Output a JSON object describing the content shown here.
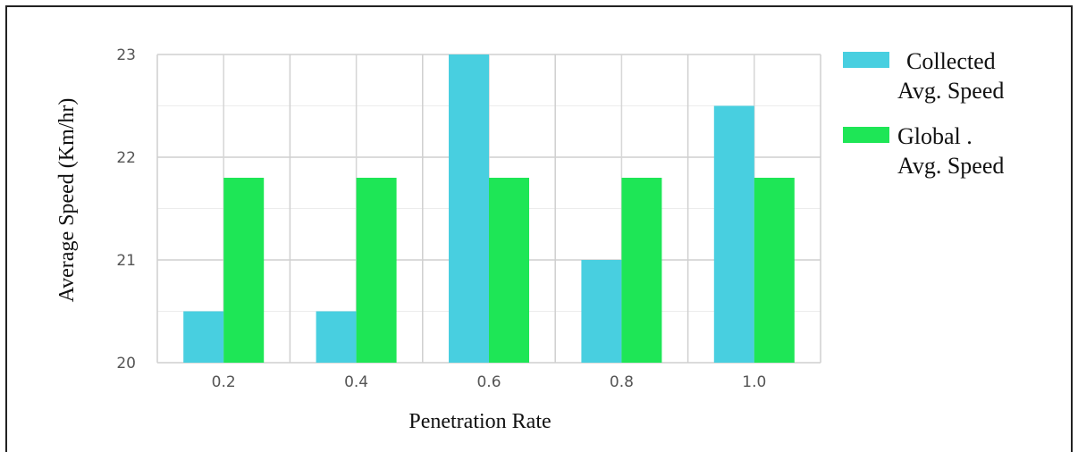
{
  "chart_data": {
    "type": "bar",
    "categories": [
      "0.2",
      "0.4",
      "0.6",
      "0.8",
      "1.0"
    ],
    "series": [
      {
        "name": "Collected Avg. Speed",
        "values": [
          20.5,
          20.5,
          23.0,
          21.0,
          22.5
        ],
        "color": "#48cfe0"
      },
      {
        "name": "Global Avg. Speed",
        "values": [
          21.8,
          21.8,
          21.8,
          21.8,
          21.8
        ],
        "color": "#1ee656"
      }
    ],
    "xlabel": "Penetration Rate",
    "ylabel": "Average Speed (Km/hr)",
    "ylim": [
      20,
      23
    ],
    "yticks": [
      "20",
      "21",
      "22",
      "23"
    ],
    "grid": true,
    "legend_position": "right"
  },
  "legend": {
    "collected": {
      "line1": "Collected",
      "line2": "Avg. Speed"
    },
    "global": {
      "line1": "Global .",
      "line2": "Avg. Speed"
    }
  }
}
